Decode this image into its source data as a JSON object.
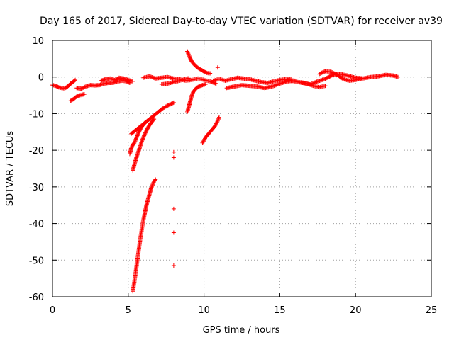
{
  "chart_data": {
    "type": "scatter",
    "title": "Day 165 of 2017, Sidereal Day-to-day VTEC variation (SDTVAR) for receiver av39",
    "xlabel": "GPS time / hours",
    "ylabel": "SDTVAR / TECUs",
    "xlim": [
      0,
      25
    ],
    "ylim": [
      -60,
      10
    ],
    "xticks": [
      0,
      5,
      10,
      15,
      20,
      25
    ],
    "yticks": [
      10,
      0,
      -10,
      -20,
      -30,
      -40,
      -50,
      -60
    ],
    "grid": true,
    "marker": "+",
    "color": "#ff0000",
    "series": [
      {
        "name": "track-early-1",
        "points": [
          [
            0.0,
            -2.2
          ],
          [
            0.2,
            -2.4
          ],
          [
            0.4,
            -2.8
          ],
          [
            0.6,
            -3.0
          ],
          [
            0.8,
            -3.1
          ],
          [
            1.0,
            -2.6
          ],
          [
            1.2,
            -1.8
          ],
          [
            1.4,
            -1.2
          ],
          [
            1.5,
            -0.8
          ]
        ]
      },
      {
        "name": "track-early-2",
        "points": [
          [
            1.2,
            -6.5
          ],
          [
            1.4,
            -6.0
          ],
          [
            1.6,
            -5.3
          ],
          [
            1.8,
            -5.0
          ],
          [
            2.0,
            -4.8
          ],
          [
            2.1,
            -4.7
          ]
        ]
      },
      {
        "name": "track-early-3",
        "points": [
          [
            1.6,
            -3.0
          ],
          [
            1.9,
            -3.2
          ],
          [
            2.2,
            -2.6
          ],
          [
            2.5,
            -2.2
          ],
          [
            2.8,
            -2.3
          ],
          [
            3.1,
            -2.2
          ],
          [
            3.4,
            -1.8
          ],
          [
            3.7,
            -1.6
          ],
          [
            4.0,
            -1.6
          ],
          [
            4.3,
            -1.2
          ],
          [
            4.6,
            -1.0
          ],
          [
            4.9,
            -1.2
          ],
          [
            5.1,
            -1.6
          ]
        ]
      },
      {
        "name": "track-early-4",
        "points": [
          [
            3.2,
            -1.0
          ],
          [
            3.5,
            -0.6
          ],
          [
            3.8,
            -0.4
          ],
          [
            4.1,
            -0.8
          ],
          [
            4.4,
            -0.2
          ],
          [
            4.7,
            -0.4
          ],
          [
            5.0,
            -0.8
          ],
          [
            5.3,
            -1.2
          ]
        ]
      },
      {
        "name": "track-descending-1",
        "points": [
          [
            5.1,
            -21.0
          ],
          [
            5.2,
            -19.5
          ],
          [
            5.3,
            -18.5
          ],
          [
            5.4,
            -18.0
          ],
          [
            5.5,
            -17.0
          ],
          [
            5.6,
            -16.0
          ],
          [
            5.7,
            -15.0
          ],
          [
            5.8,
            -14.2
          ],
          [
            5.9,
            -13.5
          ],
          [
            6.0,
            -13.0
          ],
          [
            6.1,
            -12.5
          ]
        ]
      },
      {
        "name": "track-descending-2",
        "points": [
          [
            5.2,
            -15.5
          ],
          [
            5.5,
            -14.5
          ],
          [
            5.8,
            -13.5
          ],
          [
            6.1,
            -12.5
          ],
          [
            6.4,
            -11.5
          ],
          [
            6.7,
            -10.5
          ],
          [
            7.0,
            -9.5
          ],
          [
            7.3,
            -8.5
          ],
          [
            7.6,
            -7.8
          ],
          [
            7.9,
            -7.2
          ],
          [
            8.0,
            -7.0
          ]
        ]
      },
      {
        "name": "track-descending-3",
        "points": [
          [
            5.3,
            -25.5
          ],
          [
            5.5,
            -22.5
          ],
          [
            5.7,
            -20.0
          ],
          [
            5.9,
            -17.5
          ],
          [
            6.1,
            -15.5
          ],
          [
            6.3,
            -13.8
          ],
          [
            6.5,
            -12.5
          ],
          [
            6.7,
            -11.5
          ]
        ]
      },
      {
        "name": "track-steep",
        "points": [
          [
            5.3,
            -58.5
          ],
          [
            5.4,
            -56.0
          ],
          [
            5.5,
            -53.0
          ],
          [
            5.6,
            -50.0
          ],
          [
            5.7,
            -47.0
          ],
          [
            5.8,
            -44.0
          ],
          [
            5.9,
            -41.5
          ],
          [
            6.0,
            -39.0
          ],
          [
            6.1,
            -37.0
          ],
          [
            6.2,
            -35.0
          ],
          [
            6.3,
            -33.5
          ],
          [
            6.4,
            -32.0
          ],
          [
            6.5,
            -30.5
          ],
          [
            6.6,
            -29.5
          ],
          [
            6.7,
            -28.5
          ],
          [
            6.8,
            -28.0
          ]
        ]
      },
      {
        "name": "isolated-points",
        "points": [
          [
            8.0,
            -20.5
          ],
          [
            8.0,
            -22.0
          ],
          [
            8.0,
            -36.0
          ],
          [
            8.0,
            -42.5
          ],
          [
            8.0,
            -51.5
          ]
        ]
      },
      {
        "name": "track-mid-noon-1",
        "points": [
          [
            6.0,
            -0.2
          ],
          [
            6.4,
            0.2
          ],
          [
            6.8,
            -0.4
          ],
          [
            7.2,
            -0.2
          ],
          [
            7.6,
            0.0
          ],
          [
            8.0,
            -0.4
          ],
          [
            8.4,
            -0.6
          ],
          [
            8.8,
            -1.0
          ],
          [
            9.2,
            -0.8
          ],
          [
            9.6,
            -0.4
          ],
          [
            10.0,
            -0.8
          ],
          [
            10.4,
            -1.2
          ],
          [
            10.8,
            -1.8
          ]
        ]
      },
      {
        "name": "track-mid-noon-2",
        "points": [
          [
            7.2,
            -2.0
          ],
          [
            7.6,
            -1.8
          ],
          [
            8.0,
            -1.4
          ],
          [
            8.4,
            -1.0
          ],
          [
            8.8,
            -0.5
          ],
          [
            9.0,
            -0.3
          ]
        ]
      },
      {
        "name": "track-arc-9h",
        "points": [
          [
            8.9,
            7.0
          ],
          [
            9.0,
            6.0
          ],
          [
            9.1,
            5.0
          ],
          [
            9.2,
            4.2
          ],
          [
            9.4,
            3.2
          ],
          [
            9.6,
            2.5
          ],
          [
            9.8,
            2.0
          ],
          [
            10.0,
            1.5
          ],
          [
            10.2,
            1.1
          ],
          [
            10.4,
            1.0
          ]
        ]
      },
      {
        "name": "track-9h-drop",
        "points": [
          [
            8.9,
            -9.5
          ],
          [
            9.0,
            -8.0
          ],
          [
            9.1,
            -6.5
          ],
          [
            9.2,
            -5.0
          ],
          [
            9.3,
            -4.0
          ],
          [
            9.5,
            -3.0
          ],
          [
            9.7,
            -2.5
          ],
          [
            9.9,
            -2.2
          ],
          [
            10.1,
            -2.0
          ]
        ]
      },
      {
        "name": "track-10h-rise",
        "points": [
          [
            9.9,
            -18.0
          ],
          [
            10.1,
            -16.5
          ],
          [
            10.3,
            -15.5
          ],
          [
            10.5,
            -14.5
          ],
          [
            10.7,
            -13.5
          ],
          [
            10.9,
            -12.0
          ],
          [
            11.0,
            -11.0
          ]
        ]
      },
      {
        "name": "track-late-1",
        "points": [
          [
            10.6,
            -1.0
          ],
          [
            11.0,
            -0.5
          ],
          [
            11.4,
            -1.0
          ],
          [
            11.8,
            -0.6
          ],
          [
            12.2,
            -0.2
          ],
          [
            12.6,
            -0.4
          ],
          [
            13.0,
            -0.6
          ],
          [
            13.4,
            -1.0
          ],
          [
            13.8,
            -1.4
          ],
          [
            14.2,
            -1.6
          ],
          [
            14.6,
            -1.2
          ],
          [
            15.0,
            -0.8
          ],
          [
            15.4,
            -0.6
          ],
          [
            15.8,
            -0.5
          ]
        ]
      },
      {
        "name": "track-late-2",
        "points": [
          [
            11.5,
            -3.0
          ],
          [
            12.0,
            -2.6
          ],
          [
            12.5,
            -2.2
          ],
          [
            13.0,
            -2.4
          ],
          [
            13.5,
            -2.6
          ],
          [
            14.0,
            -3.0
          ],
          [
            14.5,
            -2.6
          ],
          [
            15.0,
            -1.8
          ],
          [
            15.5,
            -1.2
          ],
          [
            16.0,
            -1.0
          ]
        ]
      },
      {
        "name": "track-late-3",
        "points": [
          [
            15.5,
            -0.8
          ],
          [
            16.0,
            -1.2
          ],
          [
            16.5,
            -1.6
          ],
          [
            17.0,
            -2.0
          ],
          [
            17.5,
            -1.2
          ],
          [
            18.0,
            -0.5
          ],
          [
            18.5,
            0.6
          ],
          [
            19.0,
            0.8
          ],
          [
            19.5,
            0.4
          ],
          [
            20.0,
            -0.2
          ],
          [
            20.5,
            -0.4
          ],
          [
            21.0,
            0.0
          ],
          [
            21.5,
            0.2
          ],
          [
            22.0,
            0.6
          ],
          [
            22.5,
            0.4
          ],
          [
            22.8,
            0.0
          ]
        ]
      },
      {
        "name": "track-late-4",
        "points": [
          [
            17.6,
            0.8
          ],
          [
            18.0,
            1.6
          ],
          [
            18.4,
            1.4
          ],
          [
            18.8,
            0.6
          ],
          [
            19.2,
            -0.6
          ],
          [
            19.6,
            -1.0
          ],
          [
            20.0,
            -0.8
          ],
          [
            20.4,
            -0.4
          ]
        ]
      },
      {
        "name": "track-late-5",
        "points": [
          [
            16.4,
            -1.4
          ],
          [
            16.8,
            -1.8
          ],
          [
            17.2,
            -2.4
          ],
          [
            17.6,
            -2.8
          ],
          [
            18.0,
            -2.4
          ]
        ]
      },
      {
        "name": "isolated-point-upper",
        "points": [
          [
            10.9,
            2.6
          ]
        ]
      }
    ]
  }
}
